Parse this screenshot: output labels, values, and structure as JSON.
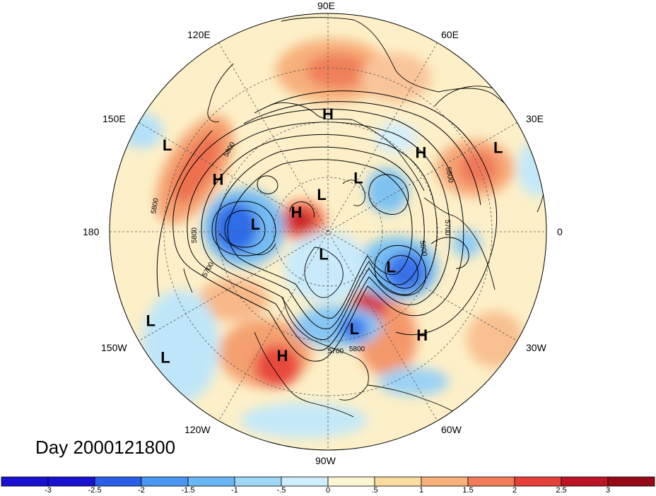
{
  "map": {
    "day_label": "Day 2000121800",
    "longitude_labels": {
      "lon_90e": "90E",
      "lon_120e": "120E",
      "lon_60e": "60E",
      "lon_150e": "150E",
      "lon_30e": "30E",
      "lon_180": "180",
      "lon_0": "0",
      "lon_150w": "150W",
      "lon_30w": "30W",
      "lon_120w": "120W",
      "lon_60w": "60W",
      "lon_90w": "90W"
    },
    "pressure_centers": [
      {
        "label": "H",
        "lon": 90,
        "lat": 42
      },
      {
        "label": "L",
        "lon": 152,
        "lat": 15
      },
      {
        "label": "H",
        "lon": 155,
        "lat": 40
      },
      {
        "label": "L",
        "lon": 26,
        "lat": 12
      },
      {
        "label": "H",
        "lon": 40,
        "lat": 40
      },
      {
        "label": "L",
        "lon": 175,
        "lat": 60
      },
      {
        "label": "H",
        "lon": 150,
        "lat": 75
      },
      {
        "label": "L",
        "lon": 100,
        "lat": 75
      },
      {
        "label": "L",
        "lon": 60,
        "lat": 65
      },
      {
        "label": "L",
        "lon": -30,
        "lat": 60
      },
      {
        "label": "L",
        "lon": -100,
        "lat": 80
      },
      {
        "label": "L",
        "lon": -75,
        "lat": 48
      },
      {
        "label": "H",
        "lon": -48,
        "lat": 32
      },
      {
        "label": "L",
        "lon": -153,
        "lat": 8
      },
      {
        "label": "H",
        "lon": -110,
        "lat": 35
      },
      {
        "label": "L",
        "lon": -142,
        "lat": 5
      }
    ],
    "contour_labels": [
      "5800",
      "5800",
      "5800",
      "5700",
      "5700",
      "5800",
      "5800",
      "5700",
      "5800"
    ]
  },
  "colorbar": {
    "colors": [
      "#1a10d0",
      "#2a5ee8",
      "#4a96f0",
      "#6ab6f4",
      "#9ed8f6",
      "#cdeefa",
      "#fdf6d2",
      "#fbdca0",
      "#f8b07a",
      "#f27c5a",
      "#e5403a",
      "#bc1424",
      "#960a18"
    ],
    "ticks": [
      "-3",
      "-2.5",
      "-2",
      "-1.5",
      "-1",
      "-.5",
      "0",
      ".5",
      "1",
      "1.5",
      "2",
      "2.5",
      "3"
    ]
  }
}
